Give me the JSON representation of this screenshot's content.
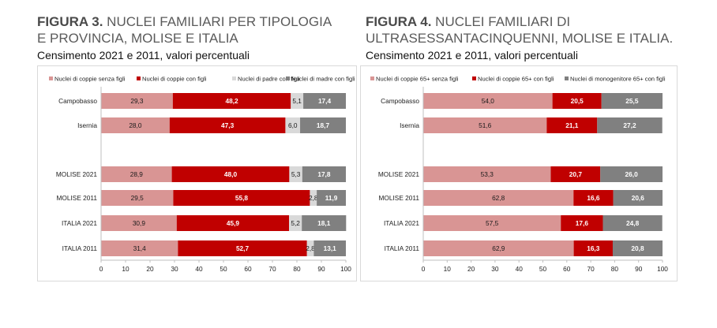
{
  "figures": [
    {
      "label": "FIGURA 3.",
      "title_line1": "NUCLEI FAMILIARI PER TIPOLOGIA",
      "title_line2": "E PROVINCIA, MOLISE E ITALIA",
      "subtitle": "Censimento 2021 e 2011, valori percentuali"
    },
    {
      "label": "FIGURA 4.",
      "title_line1": "NUCLEI FAMILIARI DI",
      "title_line2": "ULTRASESSANTACINQUENNI, MOLISE E ITALIA.",
      "subtitle": "Censimento 2021 e 2011, valori percentuali"
    }
  ],
  "chart_data": [
    {
      "type": "bar",
      "orientation": "horizontal",
      "stacked": true,
      "categories": [
        "Campobasso",
        "Isernia",
        "",
        "MOLISE 2021",
        "MOLISE 2011",
        "ITALIA 2021",
        "ITALIA 2011"
      ],
      "series": [
        {
          "name": "Nuclei di coppie senza figli",
          "color": "#d99594",
          "values": [
            29.3,
            28.0,
            null,
            28.9,
            29.5,
            30.9,
            31.4
          ]
        },
        {
          "name": "Nuclei di coppie con figli",
          "color": "#c00000",
          "values": [
            48.2,
            47.3,
            null,
            48.0,
            55.8,
            45.9,
            52.7
          ]
        },
        {
          "name": "Nuclei di padre con figli",
          "color": "#d9d9d9",
          "values": [
            5.1,
            6.0,
            null,
            5.3,
            2.8,
            5.2,
            2.8
          ]
        },
        {
          "name": "Nuclei di madre con figli",
          "color": "#808080",
          "values": [
            17.4,
            18.7,
            null,
            17.8,
            11.9,
            18.1,
            13.1
          ]
        }
      ],
      "data_labels": [
        [
          "29,3",
          "28,0",
          "",
          "28,9",
          "29,5",
          "30,9",
          "31,4"
        ],
        [
          "48,2",
          "47,3",
          "",
          "48,0",
          "55,8",
          "45,9",
          "52,7"
        ],
        [
          "5,1",
          "6,0",
          "",
          "5,3",
          "2,8",
          "5,2",
          "2,8"
        ],
        [
          "17,4",
          "18,7",
          "",
          "17,8",
          "11,9",
          "18,1",
          "13,1"
        ]
      ],
      "xlim": [
        0,
        100
      ],
      "xticks": [
        "0",
        "10",
        "20",
        "30",
        "40",
        "50",
        "60",
        "70",
        "80",
        "90",
        "100"
      ],
      "legend": "top",
      "grid": false
    },
    {
      "type": "bar",
      "orientation": "horizontal",
      "stacked": true,
      "categories": [
        "Campobasso",
        "Isernia",
        "",
        "MOLISE 2021",
        "MOLISE 2011",
        "ITALIA 2021",
        "ITALIA 2011"
      ],
      "series": [
        {
          "name": "Nuclei di coppie 65+ senza figli",
          "color": "#d99594",
          "values": [
            54.0,
            51.6,
            null,
            53.3,
            62.8,
            57.5,
            62.9
          ]
        },
        {
          "name": "Nuclei di coppie 65+ con figli",
          "color": "#c00000",
          "values": [
            20.5,
            21.1,
            null,
            20.7,
            16.6,
            17.6,
            16.3
          ]
        },
        {
          "name": "Nuclei di monogenitore 65+ con figli",
          "color": "#808080",
          "values": [
            25.5,
            27.2,
            null,
            26.0,
            20.6,
            24.8,
            20.8
          ]
        }
      ],
      "data_labels": [
        [
          "54,0",
          "51,6",
          "",
          "53,3",
          "62,8",
          "57,5",
          "62,9"
        ],
        [
          "20,5",
          "21,1",
          "",
          "20,7",
          "16,6",
          "17,6",
          "16,3"
        ],
        [
          "25,5",
          "27,2",
          "",
          "26,0",
          "20,6",
          "24,8",
          "20,8"
        ]
      ],
      "xlim": [
        0,
        100
      ],
      "xticks": [
        "0",
        "10",
        "20",
        "30",
        "40",
        "50",
        "60",
        "70",
        "80",
        "90",
        "100"
      ],
      "legend": "top",
      "grid": false
    }
  ]
}
